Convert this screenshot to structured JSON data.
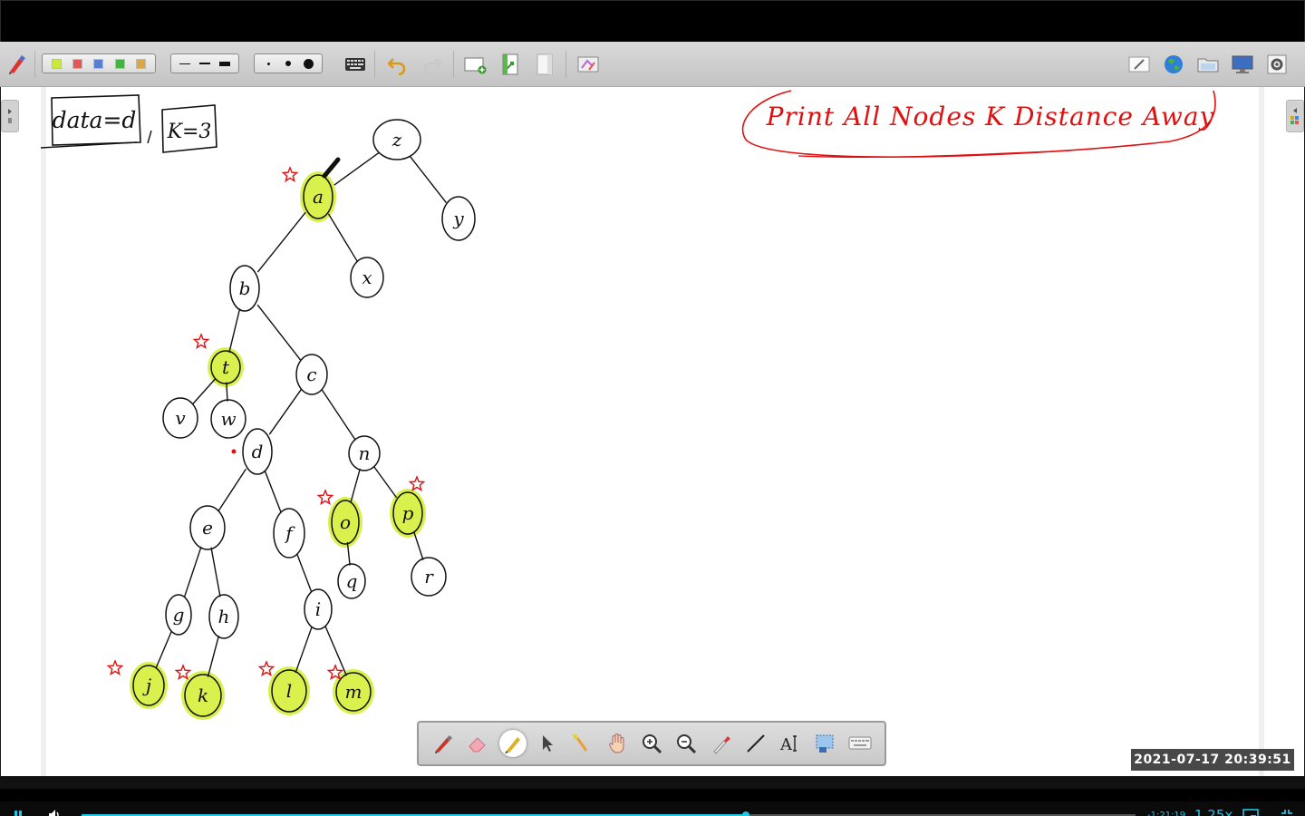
{
  "colors": {
    "accent": "#21c6e8",
    "ink": "#111111",
    "red_ink": "#e01010",
    "highlight": "#d6f03a",
    "swatches": [
      "#c8e83a",
      "#e05858",
      "#5a7fd0",
      "#45b245",
      "#d8a84a"
    ]
  },
  "toolbar": {
    "left_tool_icon": "pen-settings-icon",
    "icons_right": [
      "eraser-board-icon",
      "globe-icon",
      "folder-icon",
      "monitor-icon",
      "settings-icon"
    ]
  },
  "board": {
    "note_data": "data=d",
    "note_k": "K=3",
    "title": "Print All Nodes K Distance Away",
    "nodes": [
      "z",
      "a",
      "y",
      "b",
      "x",
      "t",
      "c",
      "v",
      "w",
      "d",
      "n",
      "e",
      "f",
      "o",
      "p",
      "g",
      "h",
      "i",
      "q",
      "r",
      "j",
      "k",
      "l",
      "m"
    ],
    "highlighted_nodes": [
      "a",
      "t",
      "o",
      "p",
      "j",
      "k",
      "l",
      "m"
    ]
  },
  "overlay": {
    "timestamp": "2021-07-17  20:39:51"
  },
  "drawing_tools": [
    "pen",
    "eraser",
    "highlighter",
    "select",
    "laser-pointer",
    "pan-hand",
    "zoom-in",
    "zoom-out",
    "color-picker",
    "line",
    "text",
    "screenshot",
    "keyboard"
  ],
  "player": {
    "progress": 0.63,
    "time_left": "-1:21:19",
    "speed": "1.25x"
  }
}
